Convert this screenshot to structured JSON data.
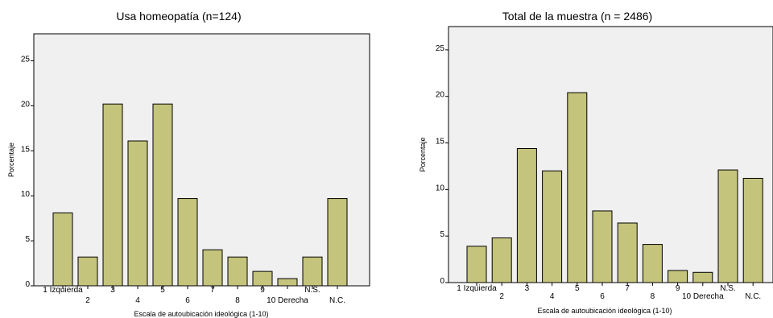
{
  "chart_data": [
    {
      "type": "bar",
      "title": "Usa homeopatía (n=124)",
      "xlabel": "Escala de autoubicación ideológica (1-10)",
      "ylabel": "Porcentaje",
      "categories": [
        "1 Izquierda",
        "2",
        "3",
        "4",
        "5",
        "6",
        "7",
        "8",
        "9",
        "10 Derecha",
        "N.S.",
        "N.C."
      ],
      "values": [
        8.1,
        3.2,
        20.2,
        16.1,
        20.2,
        9.7,
        4.0,
        3.2,
        1.6,
        0.8,
        3.2,
        9.7
      ],
      "ylim": [
        0,
        28
      ],
      "yticks": [
        0,
        5,
        10,
        15,
        20,
        25
      ],
      "grid": false,
      "bar_color": "#c4c47c",
      "plot_background": "#f0f0f0"
    },
    {
      "type": "bar",
      "title": "Total de la muestra (n = 2486)",
      "xlabel": "Escala de autoubicación ideológica (1-10)",
      "ylabel": "Porcentaje",
      "categories": [
        "1 Izquierda",
        "2",
        "3",
        "4",
        "5",
        "6",
        "7",
        "8",
        "9",
        "10 Derecha",
        "N.S.",
        "N.C."
      ],
      "values": [
        3.9,
        4.8,
        14.4,
        12.0,
        20.4,
        7.7,
        6.4,
        4.1,
        1.3,
        1.1,
        12.1,
        11.2
      ],
      "ylim": [
        0,
        27.5
      ],
      "yticks": [
        0,
        5,
        10,
        15,
        20,
        25
      ],
      "grid": false,
      "bar_color": "#c4c47c",
      "plot_background": "#f0f0f0"
    }
  ]
}
